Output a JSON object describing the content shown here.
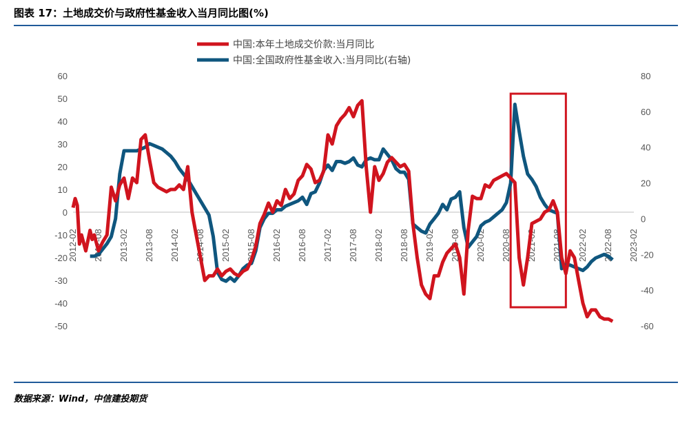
{
  "figure": {
    "title": "图表 17：土地成交价与政府性基金收入当月同比图(%)",
    "source": "数据来源：Wind，中信建投期货"
  },
  "colors": {
    "red": "#d0141e",
    "blue": "#0f567e",
    "highlight": "#d0141e",
    "rule": "#1f5a99"
  },
  "chart_data": {
    "type": "line",
    "x": [
      "2012-02",
      "2012-08",
      "2013-02",
      "2013-08",
      "2014-02",
      "2014-08",
      "2015-02",
      "2015-08",
      "2016-02",
      "2016-08",
      "2017-02",
      "2017-08",
      "2018-02",
      "2018-08",
      "2019-02",
      "2019-08",
      "2020-02",
      "2020-08",
      "2021-02",
      "2021-08",
      "2022-02",
      "2022-08",
      "2023-02"
    ],
    "left_axis": {
      "ylim": [
        -50,
        60
      ],
      "ticks": [
        -50,
        -40,
        -30,
        -20,
        -10,
        0,
        10,
        20,
        30,
        40,
        50,
        60
      ]
    },
    "right_axis": {
      "ylim": [
        -60,
        80
      ],
      "ticks": [
        -60,
        -40,
        -20,
        0,
        20,
        40,
        60,
        80
      ]
    },
    "highlight_box": {
      "from": "2020-09",
      "to": "2021-10"
    },
    "series": [
      {
        "name": "中国:本年土地成交价款:当月同比",
        "axis": "left",
        "color": "#d0141e",
        "points": [
          [
            0,
            2
          ],
          [
            0.5,
            6
          ],
          [
            1,
            3
          ],
          [
            1.5,
            -14
          ],
          [
            2,
            -10
          ],
          [
            3,
            -17
          ],
          [
            4,
            -8
          ],
          [
            4.5,
            -12
          ],
          [
            5,
            -10
          ],
          [
            6,
            -17
          ],
          [
            7,
            -13
          ],
          [
            8,
            -10
          ],
          [
            9,
            11
          ],
          [
            10,
            5
          ],
          [
            11,
            12
          ],
          [
            12,
            15
          ],
          [
            13,
            6
          ],
          [
            14,
            15
          ],
          [
            15,
            13
          ],
          [
            16,
            32
          ],
          [
            17,
            34
          ],
          [
            18,
            23
          ],
          [
            19,
            13
          ],
          [
            20,
            11
          ],
          [
            21,
            10
          ],
          [
            22,
            9
          ],
          [
            23,
            10
          ],
          [
            24,
            10
          ],
          [
            25,
            12
          ],
          [
            26,
            10
          ],
          [
            27,
            20
          ],
          [
            28,
            0
          ],
          [
            29,
            -10
          ],
          [
            30,
            -20
          ],
          [
            31,
            -30
          ],
          [
            32,
            -28
          ],
          [
            33,
            -28
          ],
          [
            34,
            -25
          ],
          [
            35,
            -28
          ],
          [
            36,
            -26
          ],
          [
            37,
            -25
          ],
          [
            38,
            -27
          ],
          [
            39,
            -28
          ],
          [
            40,
            -26
          ],
          [
            41,
            -25
          ],
          [
            42,
            -21
          ],
          [
            43,
            -15
          ],
          [
            44,
            -5
          ],
          [
            45,
            -1
          ],
          [
            46,
            4
          ],
          [
            47,
            0
          ],
          [
            48,
            5
          ],
          [
            49,
            3
          ],
          [
            50,
            10
          ],
          [
            51,
            6
          ],
          [
            52,
            8
          ],
          [
            53,
            14
          ],
          [
            54,
            16
          ],
          [
            55,
            21
          ],
          [
            56,
            19
          ],
          [
            57,
            13
          ],
          [
            58,
            14
          ],
          [
            59,
            18
          ],
          [
            60,
            34
          ],
          [
            61,
            30
          ],
          [
            62,
            38
          ],
          [
            63,
            41
          ],
          [
            64,
            43
          ],
          [
            65,
            46
          ],
          [
            66,
            42
          ],
          [
            67,
            47
          ],
          [
            68,
            49
          ],
          [
            69,
            20
          ],
          [
            70,
            0
          ],
          [
            71,
            20
          ],
          [
            72,
            14
          ],
          [
            73,
            17
          ],
          [
            74,
            22
          ],
          [
            75,
            24
          ],
          [
            76,
            22
          ],
          [
            77,
            20
          ],
          [
            78,
            21
          ],
          [
            79,
            18
          ],
          [
            80,
            -5
          ],
          [
            81,
            -20
          ],
          [
            82,
            -32
          ],
          [
            83,
            -36
          ],
          [
            84,
            -38
          ],
          [
            85,
            -28
          ],
          [
            86,
            -28
          ],
          [
            87,
            -22
          ],
          [
            88,
            -18
          ],
          [
            89,
            -16
          ],
          [
            90,
            -14
          ],
          [
            91,
            -20
          ],
          [
            92,
            -36
          ],
          [
            93,
            -8
          ],
          [
            94,
            7
          ],
          [
            95,
            6
          ],
          [
            96,
            6
          ],
          [
            97,
            12
          ],
          [
            98,
            11
          ],
          [
            99,
            14
          ],
          [
            100,
            15
          ],
          [
            101,
            16
          ],
          [
            102,
            17
          ],
          [
            103,
            15
          ],
          [
            104,
            13
          ],
          [
            105,
            -20
          ],
          [
            106,
            -32
          ],
          [
            107,
            -20
          ],
          [
            108,
            -5
          ],
          [
            109,
            -4
          ],
          [
            110,
            -3
          ],
          [
            111,
            0
          ],
          [
            112,
            1
          ],
          [
            113,
            5
          ],
          [
            114,
            0
          ],
          [
            115,
            -20
          ],
          [
            116,
            -27
          ],
          [
            117,
            -17
          ],
          [
            118,
            -20
          ],
          [
            119,
            -30
          ],
          [
            120,
            -40
          ],
          [
            121,
            -46
          ],
          [
            122,
            -43
          ],
          [
            123,
            -43
          ],
          [
            124,
            -46
          ],
          [
            125,
            -47
          ],
          [
            126,
            -47
          ],
          [
            127,
            -48
          ]
        ]
      },
      {
        "name": "中国:全国政府性基金收入:当月同比(右轴)",
        "axis": "right",
        "color": "#0f567e",
        "points": [
          [
            4,
            -21
          ],
          [
            5,
            -21
          ],
          [
            6,
            -20
          ],
          [
            7,
            -17
          ],
          [
            8,
            -14
          ],
          [
            9,
            -10
          ],
          [
            10,
            0
          ],
          [
            11,
            25
          ],
          [
            12,
            38
          ],
          [
            13,
            38
          ],
          [
            14,
            38
          ],
          [
            15,
            38
          ],
          [
            16,
            39
          ],
          [
            17,
            40
          ],
          [
            18,
            42
          ],
          [
            19,
            41
          ],
          [
            20,
            40
          ],
          [
            21,
            39
          ],
          [
            22,
            37
          ],
          [
            23,
            35
          ],
          [
            24,
            32
          ],
          [
            25,
            28
          ],
          [
            26,
            25
          ],
          [
            27,
            22
          ],
          [
            28,
            18
          ],
          [
            29,
            14
          ],
          [
            30,
            10
          ],
          [
            31,
            6
          ],
          [
            32,
            2
          ],
          [
            33,
            -10
          ],
          [
            34,
            -30
          ],
          [
            35,
            -34
          ],
          [
            36,
            -35
          ],
          [
            37,
            -33
          ],
          [
            38,
            -35
          ],
          [
            39,
            -32
          ],
          [
            40,
            -28
          ],
          [
            41,
            -26
          ],
          [
            42,
            -25
          ],
          [
            43,
            -18
          ],
          [
            44,
            -5
          ],
          [
            45,
            0
          ],
          [
            46,
            3
          ],
          [
            47,
            3
          ],
          [
            48,
            5
          ],
          [
            49,
            5
          ],
          [
            50,
            7
          ],
          [
            51,
            8
          ],
          [
            52,
            9
          ],
          [
            53,
            10
          ],
          [
            54,
            12
          ],
          [
            55,
            8
          ],
          [
            56,
            14
          ],
          [
            57,
            15
          ],
          [
            58,
            20
          ],
          [
            59,
            27
          ],
          [
            60,
            30
          ],
          [
            61,
            27
          ],
          [
            62,
            32
          ],
          [
            63,
            32
          ],
          [
            64,
            31
          ],
          [
            65,
            32
          ],
          [
            66,
            34
          ],
          [
            67,
            30
          ],
          [
            68,
            29
          ],
          [
            69,
            33
          ],
          [
            70,
            34
          ],
          [
            71,
            33
          ],
          [
            72,
            33
          ],
          [
            73,
            39
          ],
          [
            74,
            36
          ],
          [
            75,
            33
          ],
          [
            76,
            28
          ],
          [
            77,
            26
          ],
          [
            78,
            26
          ],
          [
            79,
            22
          ],
          [
            80,
            -3
          ],
          [
            81,
            -5
          ],
          [
            82,
            -7
          ],
          [
            83,
            -8
          ],
          [
            84,
            -3
          ],
          [
            85,
            0
          ],
          [
            86,
            3
          ],
          [
            87,
            8
          ],
          [
            88,
            5
          ],
          [
            89,
            11
          ],
          [
            90,
            12
          ],
          [
            91,
            15
          ],
          [
            92,
            -5
          ],
          [
            93,
            -16
          ],
          [
            94,
            -13
          ],
          [
            95,
            -10
          ],
          [
            96,
            -4
          ],
          [
            97,
            -2
          ],
          [
            98,
            -1
          ],
          [
            99,
            1
          ],
          [
            100,
            3
          ],
          [
            101,
            5
          ],
          [
            102,
            9
          ],
          [
            103,
            20
          ],
          [
            104,
            64
          ],
          [
            105,
            49
          ],
          [
            106,
            35
          ],
          [
            107,
            25
          ],
          [
            108,
            22
          ],
          [
            109,
            18
          ],
          [
            110,
            12
          ],
          [
            111,
            8
          ],
          [
            112,
            5
          ],
          [
            113,
            4
          ],
          [
            114,
            3
          ],
          [
            115,
            -28
          ],
          [
            116,
            -26
          ],
          [
            117,
            -26
          ],
          [
            118,
            -27
          ],
          [
            119,
            -28
          ],
          [
            120,
            -29
          ],
          [
            121,
            -27
          ],
          [
            122,
            -24
          ],
          [
            123,
            -22
          ],
          [
            124,
            -21
          ],
          [
            125,
            -20
          ],
          [
            126,
            -21
          ],
          [
            127,
            -23
          ]
        ]
      }
    ]
  }
}
